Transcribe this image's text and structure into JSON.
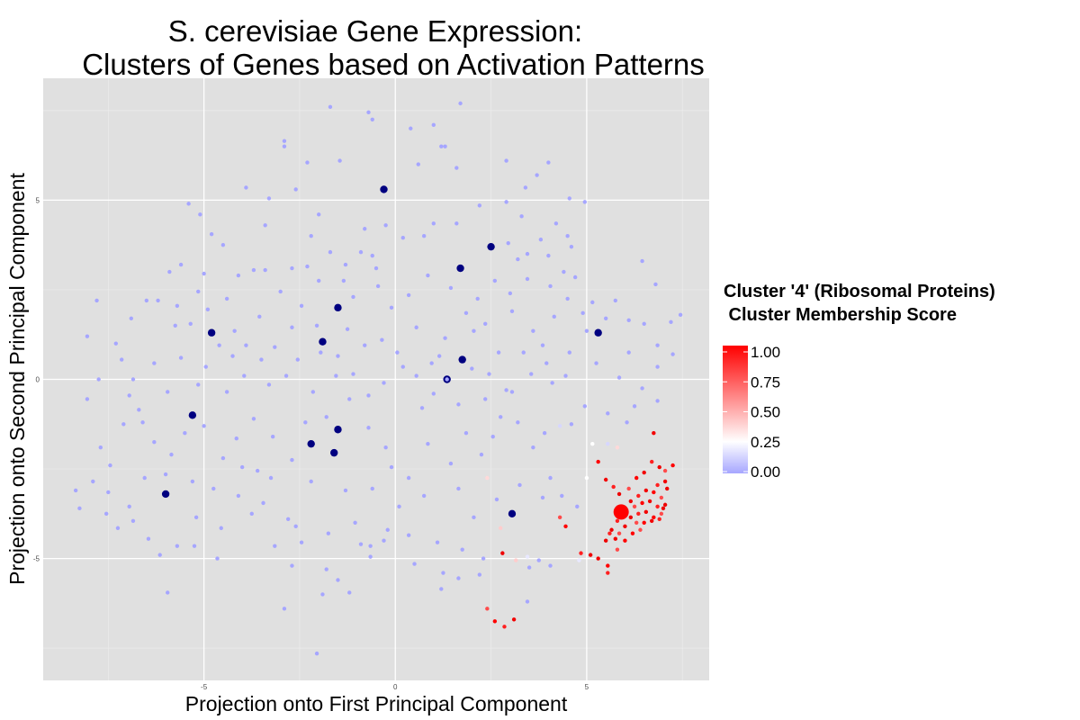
{
  "chart_data": {
    "type": "scatter",
    "title_line1": "S. cerevisiae Gene Expression:",
    "title_line2": "Clusters of Genes based on Activation Patterns",
    "xlabel": "Projection onto First Principal Component",
    "ylabel": "Projection onto Second Principal Component",
    "xlim": [
      -9.2,
      8.2
    ],
    "ylim": [
      -8.4,
      8.4
    ],
    "x_ticks": [
      -5,
      0,
      5
    ],
    "x_tick_labels": [
      "-5",
      "0",
      "5"
    ],
    "y_ticks": [
      -5,
      0,
      5
    ],
    "y_tick_labels": [
      "-5",
      "0",
      "5"
    ],
    "grid": true,
    "background_color": "#e0e0e0",
    "legend": {
      "title_line1": "Cluster '4' (Ribosomal Proteins)",
      "title_line2": " Cluster Membership Score",
      "position": "right",
      "colors": {
        "low": "#a6a6ff",
        "mid": "#ffffff",
        "high": "#ff0000"
      },
      "midpoint": 0.25,
      "ticks": [
        1.0,
        0.75,
        0.5,
        0.25,
        0.0
      ],
      "tick_labels": [
        "1.00",
        "0.75",
        "0.50",
        "0.25",
        "0.00"
      ]
    },
    "centroid_color": "#000080",
    "highlight_centroid": [
      5.9,
      -3.7
    ],
    "centroids": [
      [
        -0.3,
        5.3
      ],
      [
        2.5,
        3.7
      ],
      [
        1.7,
        3.1
      ],
      [
        -1.5,
        2.0
      ],
      [
        -4.8,
        1.3
      ],
      [
        -1.9,
        1.05
      ],
      [
        5.3,
        1.3
      ],
      [
        1.75,
        0.55
      ],
      [
        1.35,
        0.0
      ],
      [
        -5.3,
        -1.0
      ],
      [
        -1.5,
        -1.4
      ],
      [
        -2.2,
        -1.8
      ],
      [
        -1.6,
        -2.05
      ],
      [
        -6.0,
        -3.2
      ],
      [
        3.05,
        -3.75
      ]
    ],
    "red_points": [
      [
        5.3,
        -2.3
      ],
      [
        5.5,
        -2.8
      ],
      [
        5.7,
        -3.0
      ],
      [
        5.85,
        -3.2
      ],
      [
        6.1,
        -3.05
      ],
      [
        6.3,
        -2.75
      ],
      [
        6.5,
        -2.6
      ],
      [
        6.7,
        -2.3
      ],
      [
        6.9,
        -2.45
      ],
      [
        7.05,
        -2.55
      ],
      [
        7.25,
        -2.4
      ],
      [
        7.05,
        -2.85
      ],
      [
        6.85,
        -2.95
      ],
      [
        7.1,
        -3.05
      ],
      [
        6.95,
        -3.3
      ],
      [
        6.75,
        -3.15
      ],
      [
        6.55,
        -3.1
      ],
      [
        6.35,
        -3.25
      ],
      [
        6.15,
        -3.4
      ],
      [
        6.25,
        -3.55
      ],
      [
        6.45,
        -3.45
      ],
      [
        6.65,
        -3.4
      ],
      [
        6.85,
        -3.55
      ],
      [
        7.05,
        -3.5
      ],
      [
        6.95,
        -3.75
      ],
      [
        6.75,
        -3.85
      ],
      [
        6.55,
        -3.7
      ],
      [
        6.35,
        -3.75
      ],
      [
        6.15,
        -3.85
      ],
      [
        6.3,
        -4.0
      ],
      [
        6.5,
        -4.0
      ],
      [
        6.7,
        -3.95
      ],
      [
        6.9,
        -3.9
      ],
      [
        7.0,
        -3.6
      ],
      [
        6.4,
        -4.2
      ],
      [
        6.2,
        -4.3
      ],
      [
        6.0,
        -4.1
      ],
      [
        5.8,
        -3.95
      ],
      [
        5.65,
        -4.2
      ],
      [
        5.85,
        -4.3
      ],
      [
        6.0,
        -4.5
      ],
      [
        5.75,
        -4.45
      ],
      [
        5.6,
        -4.3
      ],
      [
        5.5,
        -4.5
      ],
      [
        5.8,
        -4.75
      ],
      [
        5.55,
        -5.2
      ],
      [
        5.3,
        -5.0
      ],
      [
        5.55,
        -5.4
      ],
      [
        5.1,
        -4.9
      ],
      [
        4.3,
        -3.85
      ],
      [
        4.45,
        -4.1
      ],
      [
        6.75,
        -1.5
      ],
      [
        4.85,
        -4.85
      ],
      [
        2.8,
        -4.85
      ],
      [
        2.4,
        -6.4
      ],
      [
        2.6,
        -6.75
      ],
      [
        3.1,
        -6.7
      ],
      [
        2.85,
        -6.9
      ]
    ],
    "light_points": [
      [
        4.3,
        -1.3
      ],
      [
        5.0,
        -2.75
      ],
      [
        2.4,
        -2.75
      ],
      [
        3.45,
        -4.95
      ],
      [
        2.75,
        -4.15
      ],
      [
        5.55,
        -1.8
      ],
      [
        5.15,
        -1.8
      ],
      [
        5.8,
        -1.9
      ],
      [
        4.8,
        -5.05
      ],
      [
        3.15,
        -5.05
      ]
    ],
    "blue_points": [
      [
        -5.4,
        4.9
      ],
      [
        -0.3,
        5.3
      ],
      [
        -1.7,
        7.6
      ],
      [
        -0.7,
        7.45
      ],
      [
        -0.6,
        7.25
      ],
      [
        1.0,
        7.1
      ],
      [
        1.7,
        7.7
      ],
      [
        0.4,
        7.0
      ],
      [
        1.2,
        6.5
      ],
      [
        1.3,
        6.5
      ],
      [
        -2.9,
        6.65
      ],
      [
        -2.9,
        6.5
      ],
      [
        -2.3,
        6.05
      ],
      [
        -1.45,
        6.1
      ],
      [
        0.6,
        6.0
      ],
      [
        1.6,
        5.9
      ],
      [
        2.9,
        6.1
      ],
      [
        3.4,
        5.35
      ],
      [
        3.7,
        5.7
      ],
      [
        4.0,
        6.05
      ],
      [
        4.55,
        5.05
      ],
      [
        4.95,
        4.95
      ],
      [
        -2.6,
        5.3
      ],
      [
        -3.3,
        5.05
      ],
      [
        -3.9,
        5.35
      ],
      [
        -5.1,
        4.6
      ],
      [
        -4.8,
        4.05
      ],
      [
        -4.5,
        3.75
      ],
      [
        -3.4,
        4.3
      ],
      [
        -2.0,
        4.6
      ],
      [
        -1.7,
        3.55
      ],
      [
        -2.2,
        4.0
      ],
      [
        -0.8,
        4.2
      ],
      [
        -0.25,
        4.3
      ],
      [
        0.75,
        4.0
      ],
      [
        1.0,
        4.35
      ],
      [
        1.6,
        4.35
      ],
      [
        2.2,
        4.85
      ],
      [
        2.9,
        4.95
      ],
      [
        2.95,
        3.8
      ],
      [
        3.3,
        4.55
      ],
      [
        3.8,
        3.9
      ],
      [
        4.2,
        4.35
      ],
      [
        4.5,
        4.0
      ],
      [
        4.6,
        3.7
      ],
      [
        4.7,
        2.85
      ],
      [
        4.4,
        3.0
      ],
      [
        4.0,
        3.45
      ],
      [
        3.2,
        3.35
      ],
      [
        3.45,
        3.5
      ],
      [
        0.2,
        3.95
      ],
      [
        -0.5,
        3.1
      ],
      [
        -0.9,
        3.55
      ],
      [
        -0.6,
        3.45
      ],
      [
        -1.3,
        3.2
      ],
      [
        -2.3,
        3.15
      ],
      [
        -2.7,
        3.1
      ],
      [
        -3.4,
        3.05
      ],
      [
        -3.7,
        3.05
      ],
      [
        -4.1,
        2.9
      ],
      [
        -5.0,
        2.95
      ],
      [
        -5.6,
        3.2
      ],
      [
        -5.9,
        3.0
      ],
      [
        -6.5,
        2.2
      ],
      [
        -6.2,
        2.2
      ],
      [
        -6.9,
        1.7
      ],
      [
        -7.3,
        1.0
      ],
      [
        -7.8,
        2.2
      ],
      [
        -8.05,
        1.2
      ],
      [
        -7.75,
        0.0
      ],
      [
        -7.15,
        0.55
      ],
      [
        -6.85,
        0.0
      ],
      [
        -6.3,
        0.45
      ],
      [
        -5.75,
        1.5
      ],
      [
        -5.35,
        1.55
      ],
      [
        -5.7,
        2.05
      ],
      [
        -4.9,
        1.95
      ],
      [
        -4.6,
        0.95
      ],
      [
        -4.2,
        1.35
      ],
      [
        -3.9,
        0.95
      ],
      [
        -3.5,
        0.55
      ],
      [
        -3.3,
        -0.15
      ],
      [
        -2.85,
        0.1
      ],
      [
        -2.55,
        0.55
      ],
      [
        -1.95,
        0.75
      ],
      [
        -1.5,
        0.65
      ],
      [
        -1.1,
        0.15
      ],
      [
        -0.7,
        -0.45
      ],
      [
        -0.3,
        -0.1
      ],
      [
        0.2,
        0.35
      ],
      [
        0.55,
        0.1
      ],
      [
        1.0,
        -0.4
      ],
      [
        1.15,
        0.65
      ],
      [
        2.0,
        0.3
      ],
      [
        2.45,
        0.15
      ],
      [
        2.9,
        -0.3
      ],
      [
        3.35,
        0.75
      ],
      [
        3.95,
        0.45
      ],
      [
        4.1,
        -0.1
      ],
      [
        4.55,
        0.75
      ],
      [
        5.0,
        1.35
      ],
      [
        5.75,
        2.2
      ],
      [
        6.1,
        1.65
      ],
      [
        6.5,
        1.55
      ],
      [
        6.85,
        0.95
      ],
      [
        7.2,
        1.6
      ],
      [
        7.45,
        1.8
      ],
      [
        7.25,
        0.7
      ],
      [
        6.45,
        3.3
      ],
      [
        6.8,
        2.65
      ],
      [
        6.85,
        0.35
      ],
      [
        6.1,
        0.75
      ],
      [
        -8.05,
        -0.55
      ],
      [
        -7.7,
        -1.9
      ],
      [
        -7.45,
        -2.4
      ],
      [
        -7.9,
        -2.85
      ],
      [
        -8.35,
        -3.1
      ],
      [
        -8.25,
        -3.6
      ],
      [
        -7.55,
        -3.75
      ],
      [
        -7.25,
        -4.15
      ],
      [
        -6.85,
        -3.95
      ],
      [
        -6.45,
        -4.45
      ],
      [
        -6.15,
        -4.9
      ],
      [
        -5.7,
        -4.65
      ],
      [
        -5.25,
        -4.65
      ],
      [
        -5.95,
        -5.95
      ],
      [
        -4.65,
        -5.0
      ],
      [
        -4.1,
        -3.25
      ],
      [
        -3.6,
        -2.55
      ],
      [
        -3.25,
        -2.75
      ],
      [
        -2.8,
        -3.9
      ],
      [
        -2.6,
        -4.1
      ],
      [
        -3.15,
        -4.65
      ],
      [
        -2.7,
        -5.2
      ],
      [
        -1.8,
        -5.3
      ],
      [
        -1.5,
        -5.6
      ],
      [
        -1.9,
        -6.0
      ],
      [
        -1.2,
        -5.95
      ],
      [
        -2.9,
        -6.4
      ],
      [
        -2.05,
        -7.65
      ],
      [
        -0.9,
        -4.6
      ],
      [
        -0.65,
        -4.65
      ],
      [
        -0.65,
        -4.95
      ],
      [
        -0.2,
        -4.2
      ],
      [
        0.5,
        -5.15
      ],
      [
        1.25,
        -5.4
      ],
      [
        1.2,
        -5.85
      ],
      [
        1.65,
        -5.55
      ],
      [
        2.2,
        -5.45
      ],
      [
        3.5,
        -5.25
      ],
      [
        3.75,
        -5.05
      ],
      [
        3.45,
        -6.2
      ],
      [
        4.05,
        -5.2
      ],
      [
        -6.6,
        -1.2
      ],
      [
        -6.3,
        -1.75
      ],
      [
        -5.85,
        -2.1
      ],
      [
        -5.5,
        -1.5
      ],
      [
        -5.0,
        -1.3
      ],
      [
        -4.5,
        -2.2
      ],
      [
        -4.15,
        -1.65
      ],
      [
        -3.7,
        -1.1
      ],
      [
        -3.2,
        -1.6
      ],
      [
        -2.7,
        -2.25
      ],
      [
        -2.35,
        -1.2
      ],
      [
        -1.8,
        -1.05
      ],
      [
        -1.2,
        -0.55
      ],
      [
        -0.7,
        -1.35
      ],
      [
        -0.25,
        -1.9
      ],
      [
        -0.1,
        -2.45
      ],
      [
        0.35,
        -2.75
      ],
      [
        0.85,
        -1.8
      ],
      [
        1.45,
        -2.35
      ],
      [
        1.85,
        -1.5
      ],
      [
        2.25,
        -2.1
      ],
      [
        2.55,
        -1.6
      ],
      [
        2.75,
        -1.05
      ],
      [
        3.2,
        -1.2
      ],
      [
        3.6,
        -1.9
      ],
      [
        3.9,
        -1.5
      ],
      [
        4.05,
        -2.75
      ],
      [
        4.6,
        -1.25
      ],
      [
        4.95,
        -0.75
      ],
      [
        5.55,
        -0.95
      ],
      [
        6.25,
        -0.75
      ],
      [
        6.85,
        -0.6
      ],
      [
        -6.95,
        -0.45
      ],
      [
        -5.95,
        -0.35
      ],
      [
        -5.15,
        -0.15
      ],
      [
        -4.4,
        -0.35
      ],
      [
        -3.95,
        0.1
      ],
      [
        -2.15,
        -0.35
      ],
      [
        -1.55,
        0.1
      ],
      [
        -0.8,
        0.95
      ],
      [
        0.05,
        0.75
      ],
      [
        0.7,
        -0.8
      ],
      [
        1.3,
        1.15
      ],
      [
        2.05,
        1.35
      ],
      [
        2.7,
        0.75
      ],
      [
        3.05,
        1.9
      ],
      [
        3.6,
        1.35
      ],
      [
        4.15,
        1.75
      ],
      [
        4.5,
        2.25
      ],
      [
        5.15,
        2.15
      ],
      [
        5.5,
        1.7
      ],
      [
        4.9,
        1.85
      ],
      [
        -3.55,
        1.75
      ],
      [
        -3.0,
        2.45
      ],
      [
        -2.45,
        2.05
      ],
      [
        -1.1,
        2.3
      ],
      [
        -0.45,
        2.6
      ],
      [
        0.35,
        2.35
      ],
      [
        0.85,
        2.9
      ],
      [
        1.45,
        2.55
      ],
      [
        2.15,
        2.25
      ],
      [
        2.6,
        2.75
      ],
      [
        3.0,
        2.4
      ],
      [
        3.45,
        2.8
      ],
      [
        4.05,
        2.6
      ],
      [
        -4.4,
        2.25
      ],
      [
        -5.15,
        2.45
      ],
      [
        -2.0,
        2.75
      ],
      [
        -1.35,
        2.75
      ],
      [
        -0.1,
        2.0
      ],
      [
        0.55,
        1.45
      ],
      [
        1.85,
        1.85
      ],
      [
        2.35,
        1.55
      ],
      [
        3.85,
        0.95
      ],
      [
        -6.55,
        -2.75
      ],
      [
        -6.0,
        -2.65
      ],
      [
        -5.3,
        -2.85
      ],
      [
        -4.75,
        -3.05
      ],
      [
        -4.0,
        -2.45
      ],
      [
        -3.45,
        -3.45
      ],
      [
        -2.2,
        -2.85
      ],
      [
        -1.3,
        -3.1
      ],
      [
        -0.6,
        -3.05
      ],
      [
        0.1,
        -3.55
      ],
      [
        0.75,
        -3.25
      ],
      [
        1.65,
        -3.05
      ],
      [
        2.05,
        -3.85
      ],
      [
        2.65,
        -3.35
      ],
      [
        3.25,
        -2.95
      ],
      [
        3.85,
        -3.3
      ],
      [
        4.35,
        -3.25
      ],
      [
        4.75,
        -3.55
      ],
      [
        -7.1,
        -1.25
      ],
      [
        -6.7,
        -0.85
      ],
      [
        -5.6,
        0.6
      ],
      [
        -4.95,
        0.35
      ],
      [
        -4.25,
        0.65
      ],
      [
        -3.15,
        0.9
      ],
      [
        -2.7,
        1.45
      ],
      [
        -2.05,
        1.5
      ],
      [
        -1.25,
        1.4
      ],
      [
        -0.35,
        1.1
      ],
      [
        0.95,
        0.45
      ],
      [
        1.65,
        -0.7
      ],
      [
        2.35,
        -0.55
      ],
      [
        3.05,
        -0.35
      ],
      [
        3.55,
        0.15
      ],
      [
        4.45,
        0.1
      ],
      [
        5.25,
        0.45
      ],
      [
        5.85,
        0.05
      ],
      [
        6.45,
        -0.25
      ],
      [
        6.05,
        -1.2
      ],
      [
        -7.5,
        -3.15
      ],
      [
        -6.95,
        -3.55
      ],
      [
        -5.2,
        -3.85
      ],
      [
        -4.55,
        -4.15
      ],
      [
        -3.75,
        -3.75
      ],
      [
        -2.45,
        -4.55
      ],
      [
        -1.75,
        -4.3
      ],
      [
        -1.05,
        -4.0
      ],
      [
        -0.3,
        -4.5
      ],
      [
        0.35,
        -4.35
      ],
      [
        1.1,
        -4.55
      ],
      [
        1.75,
        -4.75
      ],
      [
        2.3,
        -5.0
      ]
    ]
  }
}
